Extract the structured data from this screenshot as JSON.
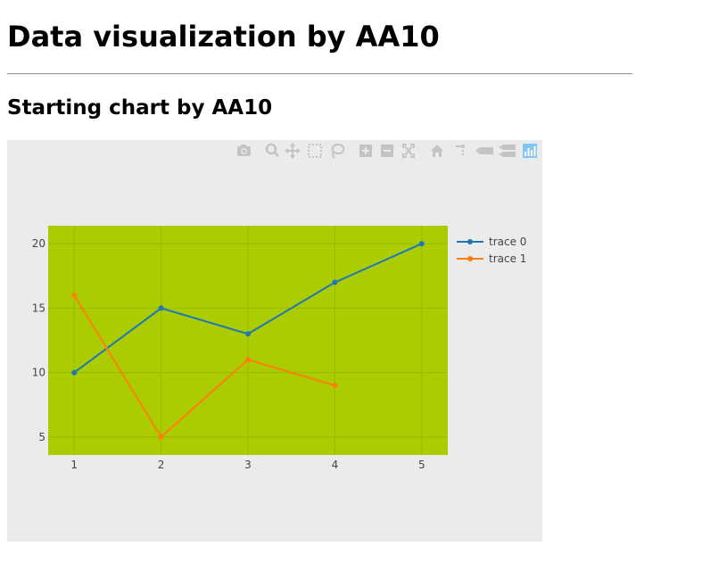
{
  "page": {
    "title": "Data visualization by AA10",
    "section_title": "Starting chart by AA10"
  },
  "modebar": {
    "icons": [
      "camera-icon",
      "zoom-icon",
      "pan-icon",
      "box-select-icon",
      "lasso-icon",
      "zoom-in-icon",
      "zoom-out-icon",
      "autoscale-icon",
      "home-icon",
      "spike-lines-icon",
      "hover-closest-icon",
      "hover-compare-icon",
      "plotly-logo-icon"
    ]
  },
  "colors": {
    "paper_bg": "#ebebeb",
    "plot_bg": "#aacc00",
    "trace0": "#1f77b4",
    "trace1": "#ff7f0e",
    "modebar_icon": "#c4c4c4",
    "plotly_logo": "#7fc6f2"
  },
  "chart_data": {
    "type": "line",
    "title": "",
    "xlabel": "",
    "ylabel": "",
    "xlim": [
      0.7,
      5.3
    ],
    "ylim": [
      3.6,
      21.4
    ],
    "x_ticks": [
      "1",
      "2",
      "3",
      "4",
      "5"
    ],
    "y_ticks": [
      "5",
      "10",
      "15",
      "20"
    ],
    "grid": true,
    "legend_position": "right",
    "series": [
      {
        "name": "trace 0",
        "x": [
          1,
          2,
          3,
          4,
          5
        ],
        "y": [
          10,
          15,
          13,
          17,
          20
        ],
        "mode": "lines+markers"
      },
      {
        "name": "trace 1",
        "x": [
          1,
          2,
          3,
          4
        ],
        "y": [
          16,
          5,
          11,
          9
        ],
        "mode": "lines+markers"
      }
    ]
  }
}
